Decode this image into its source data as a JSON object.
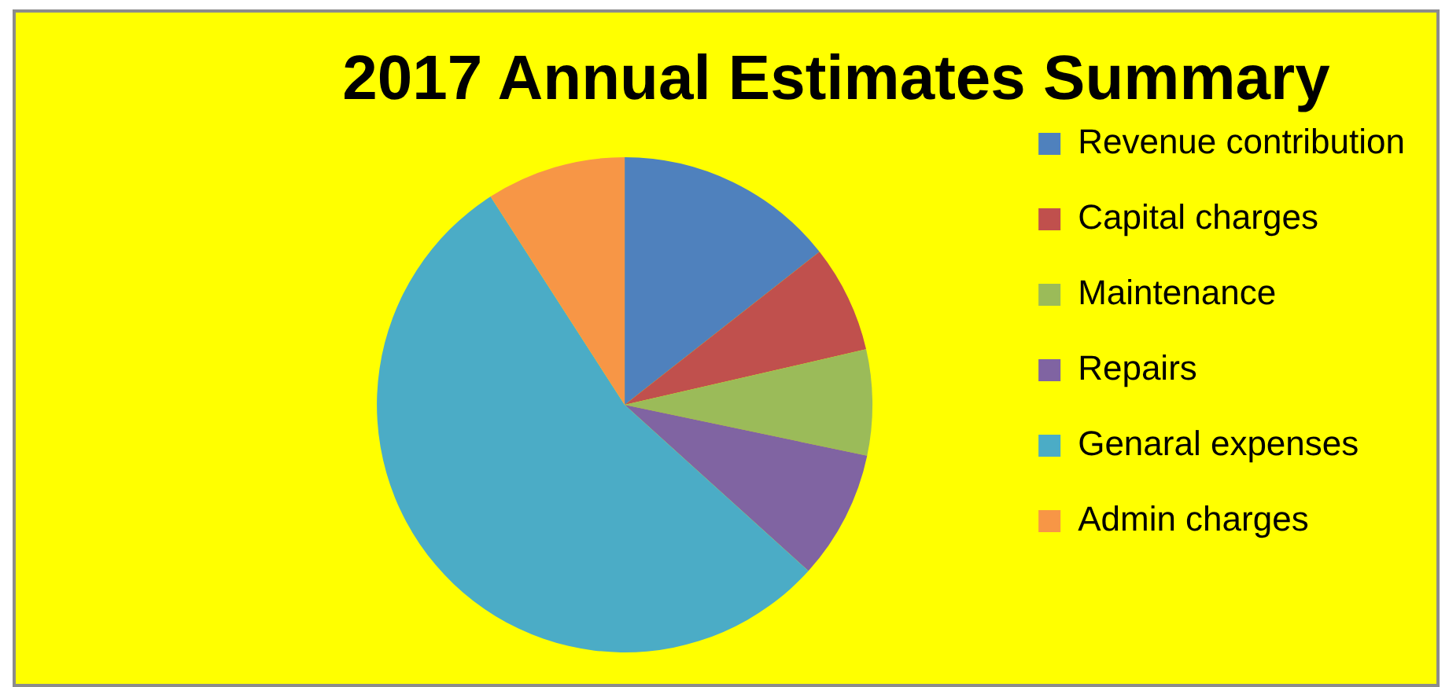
{
  "chart_data": {
    "type": "pie",
    "title": "2017 Annual Estimates Summary",
    "categories": [
      "Revenue contribution",
      "Capital charges",
      "Maintenance",
      "Repairs",
      "Genaral expenses",
      "Admin charges"
    ],
    "values": [
      14.4,
      7,
      6.9,
      8.4,
      54.2,
      9.1
    ],
    "colors": [
      "#4f81bd",
      "#c0504d",
      "#9bbb59",
      "#8064a2",
      "#4bacc6",
      "#f79646"
    ],
    "legend": "right"
  }
}
